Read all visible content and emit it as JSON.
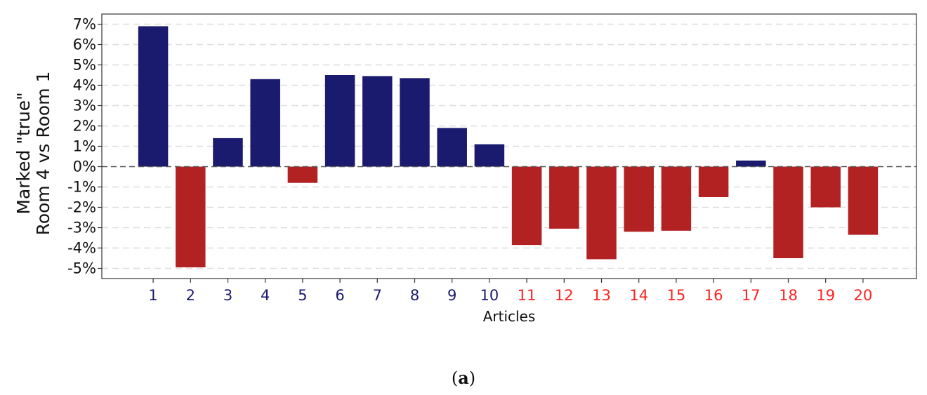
{
  "chart_data": {
    "type": "bar",
    "xlabel": "Articles",
    "ylabel_lines": [
      "Marked \"true\"",
      "Room 4 vs Room 1"
    ],
    "categories": [
      "1",
      "2",
      "3",
      "4",
      "5",
      "6",
      "7",
      "8",
      "9",
      "10",
      "11",
      "12",
      "13",
      "14",
      "15",
      "16",
      "17",
      "18",
      "19",
      "20"
    ],
    "values": [
      6.9,
      -4.95,
      1.4,
      4.3,
      -0.8,
      4.5,
      4.45,
      4.35,
      1.9,
      1.1,
      -3.85,
      -3.05,
      -4.55,
      -3.2,
      -3.15,
      -1.5,
      0.3,
      -4.5,
      -2.0,
      -3.35
    ],
    "ylim": [
      -5.5,
      7.5
    ],
    "yticks": [
      7,
      6,
      5,
      4,
      3,
      2,
      1,
      0,
      -1,
      -2,
      -3,
      -4,
      -5
    ],
    "ytick_suffix": "%",
    "grid": "y-dashed",
    "zero_line": true,
    "colors": {
      "positive_bar": "#1a1a6e",
      "negative_bar": "#b22222",
      "tick_label_group_a": "#1a1a6e",
      "tick_label_group_b": "#ff2020"
    },
    "tick_label_groups": [
      "a",
      "a",
      "a",
      "a",
      "a",
      "a",
      "a",
      "a",
      "a",
      "a",
      "b",
      "b",
      "b",
      "b",
      "b",
      "b",
      "b",
      "b",
      "b",
      "b"
    ]
  },
  "caption": {
    "open": "(",
    "letter": "a",
    "close": ")"
  }
}
